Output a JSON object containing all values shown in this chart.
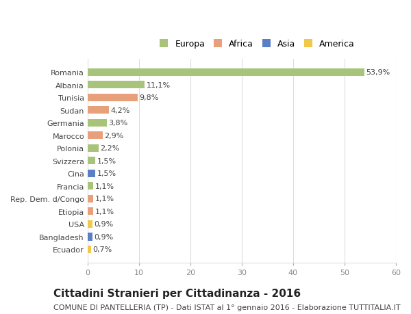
{
  "categories": [
    "Romania",
    "Albania",
    "Tunisia",
    "Sudan",
    "Germania",
    "Marocco",
    "Polonia",
    "Svizzera",
    "Cina",
    "Francia",
    "Rep. Dem. d/Congo",
    "Etiopia",
    "USA",
    "Bangladesh",
    "Ecuador"
  ],
  "values": [
    53.9,
    11.1,
    9.8,
    4.2,
    3.8,
    2.9,
    2.2,
    1.5,
    1.5,
    1.1,
    1.1,
    1.1,
    0.9,
    0.9,
    0.7
  ],
  "labels": [
    "53,9%",
    "11,1%",
    "9,8%",
    "4,2%",
    "3,8%",
    "2,9%",
    "2,2%",
    "1,5%",
    "1,5%",
    "1,1%",
    "1,1%",
    "1,1%",
    "0,9%",
    "0,9%",
    "0,7%"
  ],
  "colors": [
    "#a8c47a",
    "#a8c47a",
    "#e8a07a",
    "#e8a07a",
    "#a8c47a",
    "#e8a07a",
    "#a8c47a",
    "#a8c47a",
    "#5b7fc4",
    "#a8c47a",
    "#e8a07a",
    "#e8a07a",
    "#f0c84a",
    "#5b7fc4",
    "#f0c84a"
  ],
  "legend_labels": [
    "Europa",
    "Africa",
    "Asia",
    "America"
  ],
  "legend_colors": [
    "#a8c47a",
    "#e8a07a",
    "#5b7fc4",
    "#f0c84a"
  ],
  "xlim": [
    0,
    60
  ],
  "xticks": [
    0,
    10,
    20,
    30,
    40,
    50,
    60
  ],
  "title": "Cittadini Stranieri per Cittadinanza - 2016",
  "subtitle": "COMUNE DI PANTELLERIA (TP) - Dati ISTAT al 1° gennaio 2016 - Elaborazione TUTTITALIA.IT",
  "bg_color": "#ffffff",
  "grid_color": "#dddddd",
  "bar_height": 0.6,
  "title_fontsize": 11,
  "subtitle_fontsize": 8,
  "label_fontsize": 8,
  "tick_fontsize": 8,
  "legend_fontsize": 9
}
